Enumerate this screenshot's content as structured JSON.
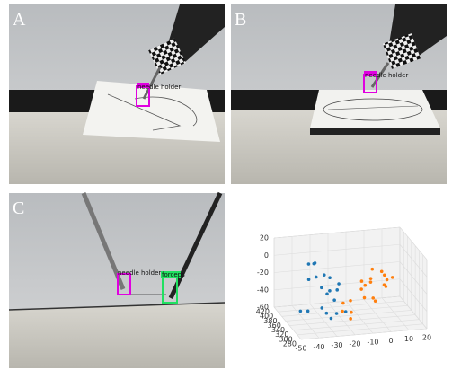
{
  "panels": [
    {
      "label": "A",
      "detections": [
        {
          "label": "needle holder"
        }
      ]
    },
    {
      "label": "B",
      "detections": [
        {
          "label": "needle holder"
        }
      ]
    },
    {
      "label": "C",
      "detections": [
        {
          "label": "needle holder"
        },
        {
          "label": "forceps"
        }
      ]
    }
  ],
  "chart_data": {
    "type": "scatter3d",
    "xlim": [
      -50,
      20
    ],
    "ylim": [
      280,
      420
    ],
    "zlim": [
      -60,
      20
    ],
    "xticks": [
      -50,
      -40,
      -30,
      -20,
      -10,
      0,
      10,
      20
    ],
    "yticks": [
      280,
      300,
      320,
      340,
      360,
      380,
      400,
      420
    ],
    "zticks": [
      -60,
      -40,
      -20,
      0,
      20
    ],
    "series": [
      {
        "color": "#1f77b4",
        "x": [
          -35,
          -32,
          -30,
          -28,
          -27,
          -25,
          -33,
          -31,
          -29,
          -26,
          -24,
          -22,
          -34,
          -30,
          -28,
          -36,
          -38,
          -27,
          -23,
          -31
        ],
        "y": [
          380,
          370,
          360,
          350,
          345,
          340,
          330,
          325,
          320,
          355,
          335,
          345,
          390,
          400,
          365,
          375,
          395,
          310,
          300,
          385
        ],
        "z": [
          -20,
          -15,
          -25,
          -30,
          -10,
          -35,
          -40,
          -45,
          -50,
          -28,
          -22,
          -18,
          -5,
          -8,
          -12,
          -55,
          -60,
          -42,
          -38,
          -3
        ]
      },
      {
        "color": "#ff7f0e",
        "x": [
          -12,
          -8,
          -5,
          -3,
          0,
          2,
          -10,
          -6,
          -4,
          -15,
          -18,
          -20,
          -2,
          1,
          -7,
          -9,
          -14,
          -16,
          3,
          -11
        ],
        "y": [
          320,
          310,
          330,
          300,
          315,
          325,
          340,
          305,
          335,
          350,
          360,
          345,
          295,
          310,
          320,
          330,
          355,
          340,
          300,
          315
        ],
        "z": [
          -10,
          -5,
          0,
          5,
          -15,
          -20,
          -25,
          -30,
          -35,
          -40,
          -45,
          -50,
          2,
          -8,
          -12,
          -18,
          -55,
          -58,
          -3,
          -28
        ]
      }
    ]
  }
}
